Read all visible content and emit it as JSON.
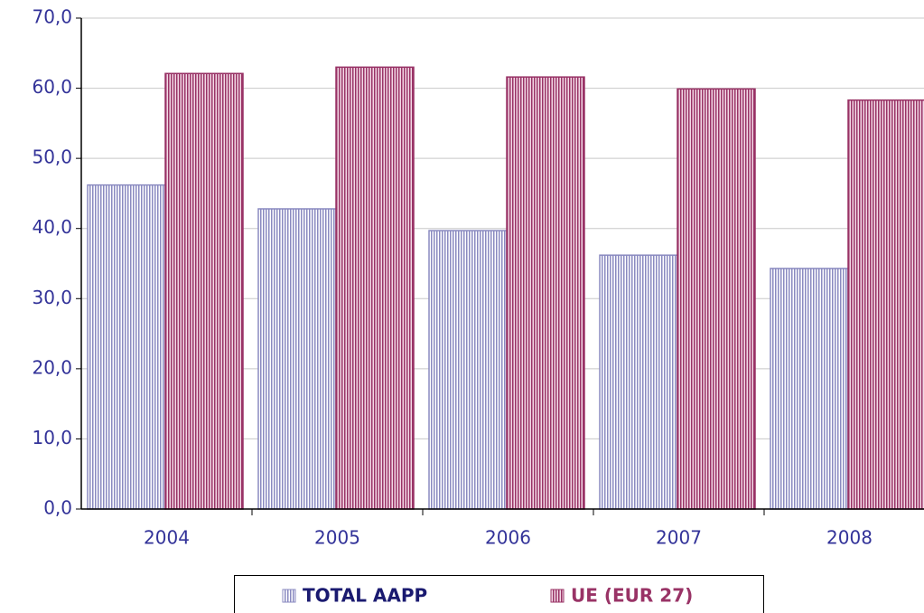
{
  "chart_data": {
    "type": "bar",
    "categories": [
      "2004",
      "2005",
      "2006",
      "2007",
      "2008"
    ],
    "series": [
      {
        "name": "TOTAL AAPP",
        "color": "#8a8ac0",
        "values": [
          46.2,
          42.8,
          39.7,
          36.2,
          34.3
        ]
      },
      {
        "name": "UE (EUR 27)",
        "color": "#993366",
        "values": [
          62.1,
          63.0,
          61.6,
          59.9,
          58.3
        ]
      }
    ],
    "ylim": [
      0,
      70
    ],
    "yticks": [
      {
        "value": 0,
        "label": "0,0"
      },
      {
        "value": 10,
        "label": "10,0"
      },
      {
        "value": 20,
        "label": "20,0"
      },
      {
        "value": 30,
        "label": "30,0"
      },
      {
        "value": 40,
        "label": "40,0"
      },
      {
        "value": 50,
        "label": "50,0"
      },
      {
        "value": 60,
        "label": "60,0"
      },
      {
        "value": 70,
        "label": "70,0"
      }
    ],
    "grid": true,
    "legend": "bottom"
  }
}
